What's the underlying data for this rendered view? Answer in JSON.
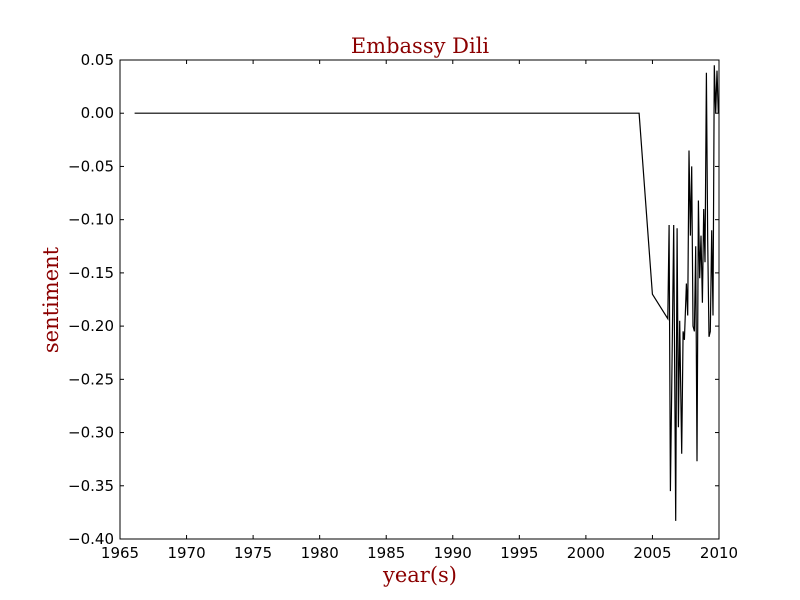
{
  "chart_data": {
    "type": "line",
    "title": "Embassy Dili",
    "xlabel": "year(s)",
    "ylabel": "sentiment",
    "xlim": [
      1965,
      2010
    ],
    "ylim": [
      -0.4,
      0.05
    ],
    "x_ticks": [
      "1965",
      "1970",
      "1975",
      "1980",
      "1985",
      "1990",
      "1995",
      "2000",
      "2005",
      "2010"
    ],
    "y_ticks": [
      "0.05",
      "0.00",
      "−0.05",
      "−0.10",
      "−0.15",
      "−0.20",
      "−0.25",
      "−0.30",
      "−0.35",
      "−0.40"
    ],
    "grid": false,
    "legend": "none",
    "colors": {
      "line": "#000000",
      "title": "#8b0000",
      "axis_label": "#8b0000"
    },
    "series": [
      {
        "x": [
          1966.1,
          2004.0,
          2005.0,
          2006.15,
          2006.25,
          2006.35,
          2006.45,
          2006.6,
          2006.75,
          2006.85,
          2006.95,
          2007.05,
          2007.2,
          2007.3,
          2007.4,
          2007.55,
          2007.65,
          2007.75,
          2007.85,
          2007.95,
          2008.05,
          2008.15,
          2008.25,
          2008.35,
          2008.45,
          2008.55,
          2008.65,
          2008.75,
          2008.85,
          2008.95,
          2009.05,
          2009.15,
          2009.25,
          2009.35,
          2009.45,
          2009.55,
          2009.65,
          2009.75,
          2009.85,
          2009.95
        ],
        "y": [
          0.0,
          0.0,
          -0.17,
          -0.193,
          -0.105,
          -0.355,
          -0.26,
          -0.105,
          -0.383,
          -0.108,
          -0.295,
          -0.195,
          -0.32,
          -0.205,
          -0.213,
          -0.16,
          -0.19,
          -0.035,
          -0.115,
          -0.05,
          -0.2,
          -0.205,
          -0.125,
          -0.327,
          -0.082,
          -0.155,
          -0.115,
          -0.178,
          -0.09,
          -0.14,
          0.038,
          -0.12,
          -0.21,
          -0.205,
          -0.11,
          -0.19,
          0.045,
          -0.0,
          0.04,
          -0.0
        ]
      }
    ]
  }
}
